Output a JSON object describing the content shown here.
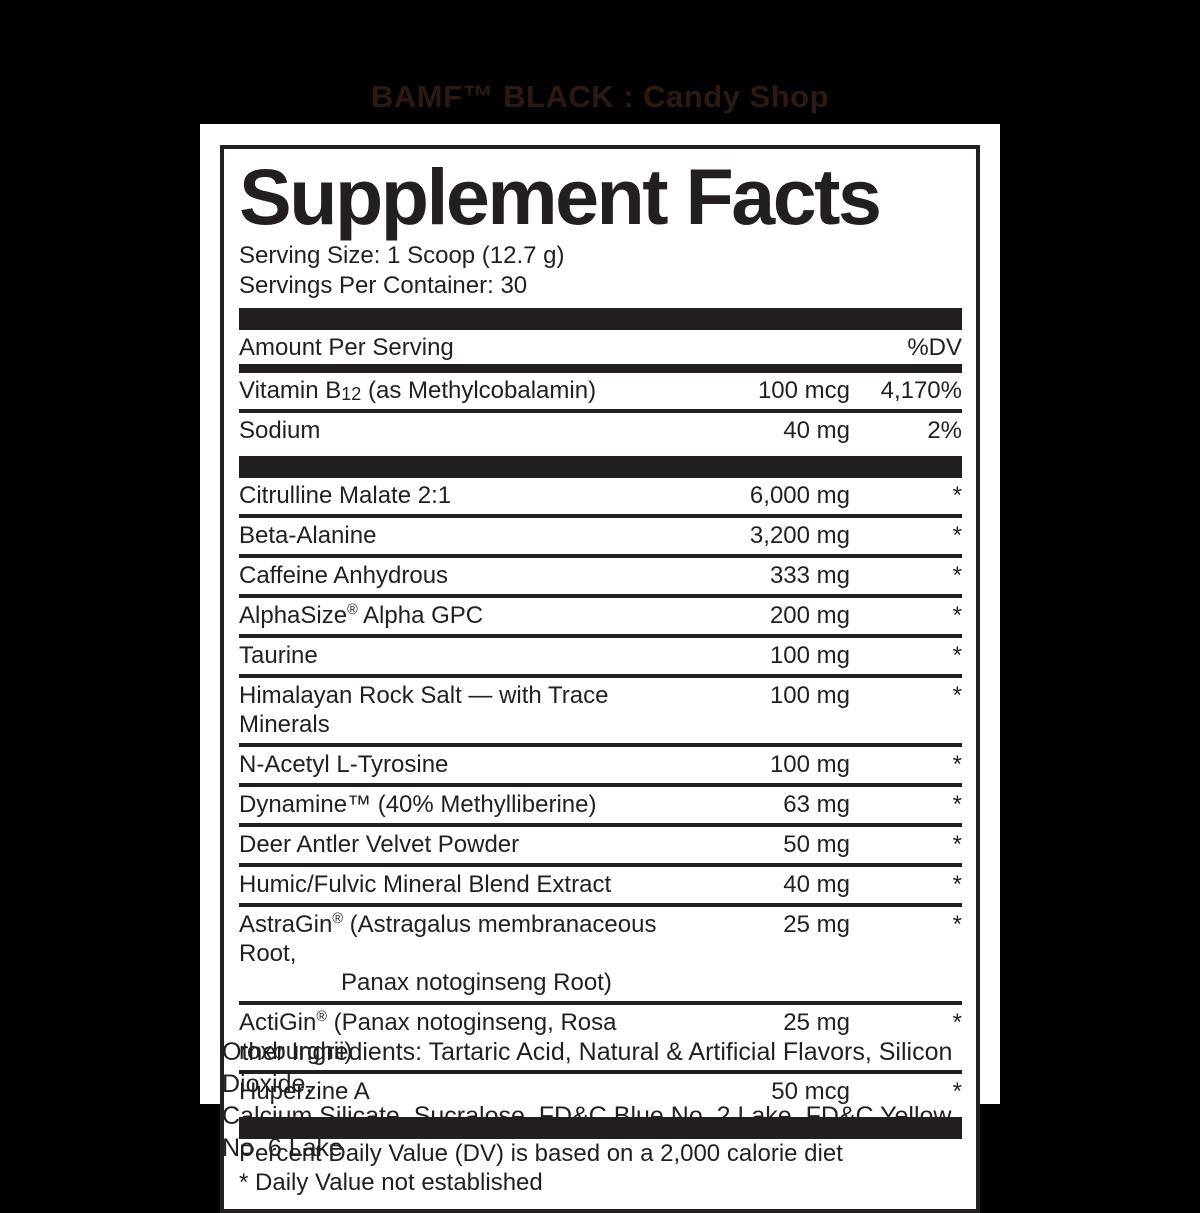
{
  "product": {
    "title": "BAMF™ BLACK : Candy Shop"
  },
  "panel": {
    "title": "Supplement Facts",
    "serving_size": "Serving Size: 1 Scoop (12.7 g)",
    "servings_per_container": "Servings Per Container: 30",
    "amount_header": "Amount Per Serving",
    "dv_header": "%DV",
    "vitamins": [
      {
        "name": [
          {
            "t": "Vitamin B"
          },
          {
            "sub": "12"
          },
          {
            "t": " (as Methylcobalamin)"
          }
        ],
        "amount": "100 mcg",
        "dv": "4,170%"
      },
      {
        "name": [
          {
            "t": "Sodium"
          }
        ],
        "amount": "40 mg",
        "dv": "2%"
      }
    ],
    "ingredients": [
      {
        "name": [
          {
            "t": "Citrulline Malate 2:1"
          }
        ],
        "amount": "6,000 mg",
        "dv": "*"
      },
      {
        "name": [
          {
            "t": "Beta-Alanine"
          }
        ],
        "amount": "3,200 mg",
        "dv": "*"
      },
      {
        "name": [
          {
            "t": "Caffeine Anhydrous"
          }
        ],
        "amount": "333 mg",
        "dv": "*"
      },
      {
        "name": [
          {
            "t": "AlphaSize"
          },
          {
            "sup": "®"
          },
          {
            "t": " Alpha GPC"
          }
        ],
        "amount": "200 mg",
        "dv": "*"
      },
      {
        "name": [
          {
            "t": "Taurine"
          }
        ],
        "amount": "100 mg",
        "dv": "*"
      },
      {
        "name": [
          {
            "t": "Himalayan Rock Salt — with Trace Minerals"
          }
        ],
        "amount": "100 mg",
        "dv": "*"
      },
      {
        "name": [
          {
            "t": "N-Acetyl L-Tyrosine"
          }
        ],
        "amount": "100 mg",
        "dv": "*"
      },
      {
        "name": [
          {
            "t": "Dynamine™ (40% Methylliberine)"
          }
        ],
        "amount": "63 mg",
        "dv": "*"
      },
      {
        "name": [
          {
            "t": "Deer Antler Velvet Powder"
          }
        ],
        "amount": "50 mg",
        "dv": "*"
      },
      {
        "name": [
          {
            "t": "Humic/Fulvic Mineral Blend Extract"
          }
        ],
        "amount": "40 mg",
        "dv": "*"
      },
      {
        "name": [
          {
            "t": "AstraGin"
          },
          {
            "sup": "®"
          },
          {
            "t": " (Astragalus membranaceous Root,"
          },
          {
            "br": true
          },
          {
            "t2": "Panax notoginseng Root)"
          }
        ],
        "amount": "25 mg",
        "dv": "*"
      },
      {
        "name": [
          {
            "t": "ActiGin"
          },
          {
            "sup": "®"
          },
          {
            "t": " (Panax notoginseng, Rosa roxburghii)"
          }
        ],
        "amount": "25 mg",
        "dv": "*"
      },
      {
        "name": [
          {
            "t": "Huperzine A"
          }
        ],
        "amount": "50 mcg",
        "dv": "*"
      }
    ],
    "footnote_line1": "Percent Daily Value (DV) is based on a 2,000 calorie diet",
    "footnote_line2": "* Daily Value not established"
  },
  "other_ingredients": [
    "Other Ingredients: Tartaric Acid, Natural & Artificial Flavors, Silicon Dioxide,",
    "Calcium Silicate, Sucralose, FD&C Blue No. 2 Lake, FD&C Yellow No. 6 Lake"
  ],
  "colors": {
    "ink": "#231f20",
    "background": "#000000",
    "label": "#ffffff",
    "product_title_text": "#2b1a12"
  }
}
